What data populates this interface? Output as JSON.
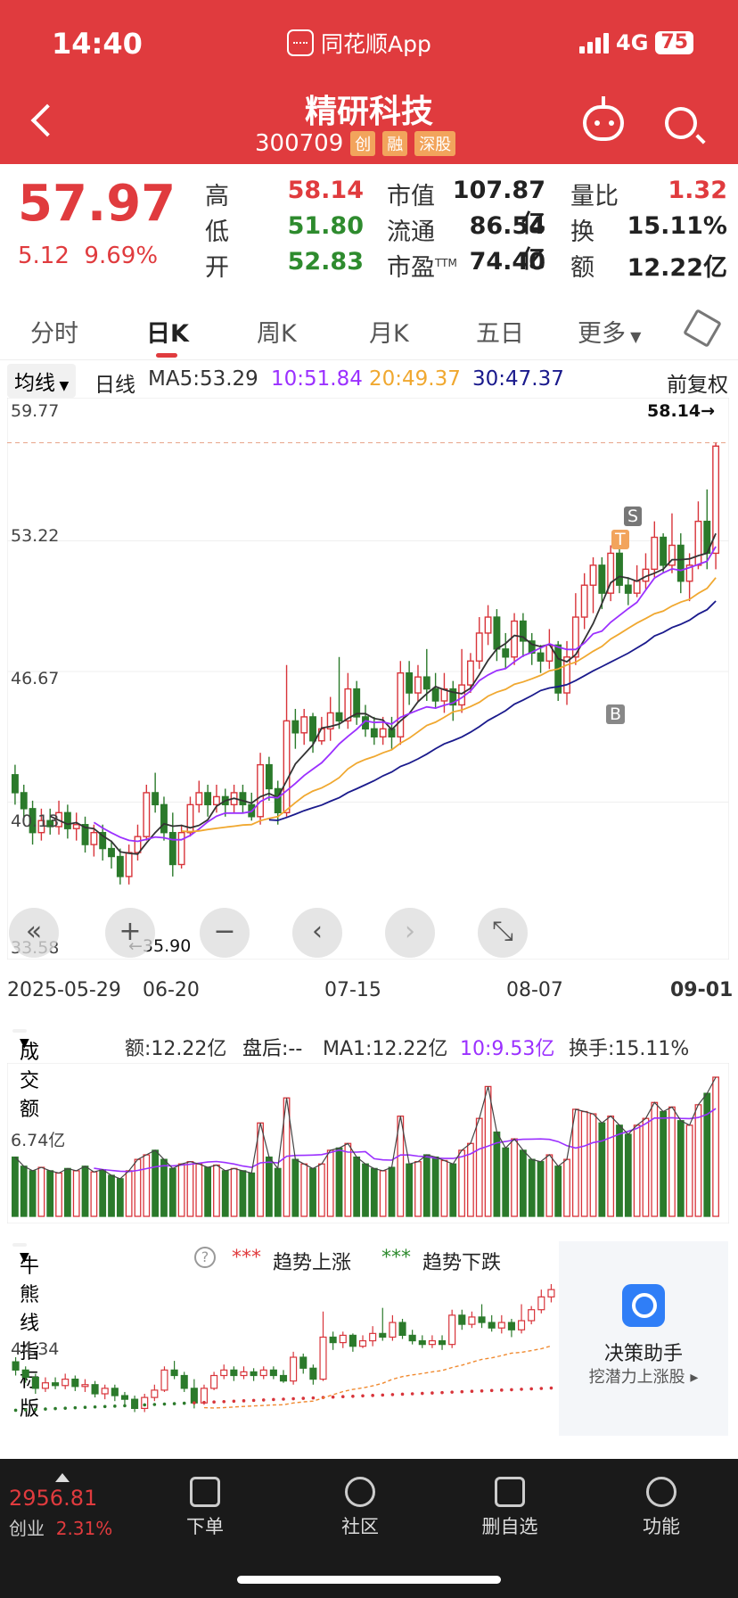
{
  "status": {
    "time": "14:40",
    "app": "同花顺App",
    "network": "4G",
    "battery": "75"
  },
  "header": {
    "name": "精研科技",
    "code": "300709",
    "tags": [
      "创",
      "融",
      "深股"
    ]
  },
  "quote": {
    "price": "57.97",
    "change": "5.12",
    "pct": "9.69%",
    "rows": [
      {
        "l1": "高",
        "v1": "58.14",
        "c1": "red",
        "l2": "市值",
        "v2": "107.87亿",
        "l3": "量比",
        "v3": "1.32",
        "c3": "red"
      },
      {
        "l1": "低",
        "v1": "51.80",
        "c1": "green",
        "l2": "流通",
        "v2": "86.54亿",
        "l3": "换",
        "v3": "15.11%",
        "c3": "dark"
      },
      {
        "l1": "开",
        "v1": "52.83",
        "c1": "green",
        "l2": "市盈",
        "sup": "TTM",
        "v2": "74.40",
        "l3": "额",
        "v3": "12.22亿",
        "c3": "dark"
      }
    ]
  },
  "tabs": [
    "分时",
    "日K",
    "周K",
    "月K",
    "五日",
    "更多"
  ],
  "ma": {
    "type": "均线",
    "period": "日线",
    "ma5": "MA5:53.29",
    "ma10": "10:51.84",
    "ma20": "20:49.37",
    "ma30": "30:47.37",
    "adjust": "前复权",
    "colors": {
      "ma5": "#333333",
      "ma10": "#9b30ff",
      "ma20": "#f0a830",
      "ma30": "#1a1a8c"
    }
  },
  "kchart_labels": {
    "y_ticks": [
      "59.77",
      "53.22",
      "46.67",
      "40.13",
      "33.58"
    ],
    "high_mark": "58.14→",
    "low_mark": "←35.90",
    "signals": [
      "S",
      "T",
      "B"
    ],
    "dates": [
      "2025-05-29",
      "06-20",
      "07-15",
      "08-07",
      "09-01"
    ]
  },
  "volume": {
    "title": "成交额",
    "amount": "额:12.22亿",
    "after": "盘后:--",
    "ma1": "MA1:12.22亿",
    "ma10": "10:9.53亿",
    "turnover": "换手:15.11%",
    "y_tick": "6.74亿"
  },
  "bull": {
    "title": "牛熊线指标版",
    "help": "?",
    "up": "趋势上涨",
    "down": "趋势下跌",
    "stars_up": "***",
    "stars_down": "***",
    "y_tick": "44.34"
  },
  "decision": {
    "title": "决策助手",
    "sub": "挖潜力上涨股 ▸"
  },
  "bottom": {
    "index_value": "2956.81",
    "index_name": "创业",
    "index_pct": "2.31%",
    "items": [
      "下单",
      "社区",
      "删自选",
      "功能"
    ]
  },
  "chart_data": {
    "type": "candlestick",
    "ylim": [
      33.58,
      59.77
    ],
    "candles": [
      [
        41.5,
        40.6,
        42.0,
        40.0
      ],
      [
        40.6,
        39.8,
        41.0,
        39.2
      ],
      [
        39.8,
        38.6,
        40.2,
        38.0
      ],
      [
        38.6,
        39.2,
        39.8,
        38.2
      ],
      [
        39.2,
        38.9,
        39.8,
        38.5
      ],
      [
        38.9,
        39.6,
        40.2,
        38.5
      ],
      [
        39.6,
        38.8,
        40.0,
        38.3
      ],
      [
        38.8,
        39.0,
        39.6,
        38.2
      ],
      [
        39.0,
        38.0,
        39.4,
        37.6
      ],
      [
        38.0,
        38.6,
        39.0,
        37.4
      ],
      [
        38.6,
        37.8,
        39.0,
        37.2
      ],
      [
        37.8,
        37.4,
        38.2,
        36.8
      ],
      [
        37.4,
        36.4,
        37.8,
        36.0
      ],
      [
        36.4,
        37.6,
        38.0,
        36.0
      ],
      [
        37.6,
        38.4,
        39.0,
        37.2
      ],
      [
        38.4,
        40.6,
        41.0,
        38.2
      ],
      [
        40.6,
        40.0,
        41.6,
        39.6
      ],
      [
        40.0,
        38.6,
        40.4,
        38.2
      ],
      [
        38.6,
        37.0,
        39.6,
        36.4
      ],
      [
        37.0,
        38.6,
        39.0,
        36.8
      ],
      [
        38.6,
        40.0,
        40.4,
        38.4
      ],
      [
        40.0,
        40.6,
        41.2,
        39.6
      ],
      [
        40.6,
        40.0,
        41.0,
        39.4
      ],
      [
        40.0,
        40.4,
        41.0,
        39.6
      ],
      [
        40.4,
        40.0,
        40.8,
        39.4
      ],
      [
        40.0,
        40.6,
        41.0,
        39.6
      ],
      [
        40.6,
        40.0,
        41.0,
        39.6
      ],
      [
        40.0,
        39.4,
        40.6,
        39.2
      ],
      [
        39.4,
        42.0,
        42.6,
        39.0
      ],
      [
        42.0,
        40.8,
        42.4,
        40.2
      ],
      [
        40.8,
        39.6,
        41.2,
        39.0
      ],
      [
        39.6,
        44.2,
        47.0,
        39.4
      ],
      [
        44.2,
        43.6,
        44.8,
        42.8
      ],
      [
        43.6,
        44.4,
        44.8,
        43.0
      ],
      [
        44.4,
        43.2,
        44.6,
        42.6
      ],
      [
        43.2,
        43.8,
        44.4,
        43.0
      ],
      [
        43.8,
        44.6,
        45.4,
        43.2
      ],
      [
        44.6,
        44.2,
        47.4,
        43.8
      ],
      [
        44.2,
        45.8,
        46.6,
        43.8
      ],
      [
        45.8,
        44.4,
        46.2,
        44.0
      ],
      [
        44.4,
        43.8,
        45.0,
        43.4
      ],
      [
        43.8,
        43.4,
        44.4,
        43.0
      ],
      [
        43.4,
        43.8,
        44.4,
        43.0
      ],
      [
        43.8,
        43.4,
        44.4,
        42.8
      ],
      [
        43.4,
        46.6,
        47.2,
        43.0
      ],
      [
        46.6,
        45.6,
        47.2,
        45.0
      ],
      [
        45.6,
        46.4,
        47.0,
        45.2
      ],
      [
        46.4,
        45.8,
        47.8,
        45.2
      ],
      [
        45.8,
        45.2,
        46.6,
        44.8
      ],
      [
        45.2,
        45.8,
        46.6,
        44.6
      ],
      [
        45.8,
        45.0,
        46.2,
        44.2
      ],
      [
        45.0,
        46.0,
        47.8,
        44.6
      ],
      [
        46.0,
        47.2,
        47.6,
        45.6
      ],
      [
        47.2,
        48.6,
        49.4,
        46.8
      ],
      [
        48.6,
        49.4,
        50.0,
        48.0
      ],
      [
        49.4,
        47.8,
        49.8,
        47.2
      ],
      [
        47.8,
        47.4,
        48.6,
        46.8
      ],
      [
        47.4,
        49.2,
        49.6,
        47.0
      ],
      [
        49.2,
        48.2,
        49.6,
        47.4
      ],
      [
        48.2,
        47.6,
        48.6,
        47.0
      ],
      [
        47.6,
        47.2,
        48.0,
        46.6
      ],
      [
        47.2,
        48.0,
        48.8,
        46.8
      ],
      [
        48.0,
        45.6,
        48.2,
        45.2
      ],
      [
        45.6,
        47.4,
        48.2,
        45.0
      ],
      [
        47.4,
        49.4,
        50.6,
        47.0
      ],
      [
        49.4,
        51.0,
        51.6,
        48.8
      ],
      [
        51.0,
        52.0,
        52.4,
        49.6
      ],
      [
        52.0,
        50.6,
        52.4,
        49.8
      ],
      [
        50.6,
        52.6,
        53.0,
        50.2
      ],
      [
        52.6,
        51.0,
        53.0,
        50.6
      ],
      [
        51.0,
        50.6,
        51.4,
        50.0
      ],
      [
        50.6,
        51.2,
        52.0,
        50.4
      ],
      [
        51.2,
        51.8,
        52.6,
        50.8
      ],
      [
        51.8,
        53.4,
        54.2,
        51.4
      ],
      [
        53.4,
        52.0,
        53.6,
        51.6
      ],
      [
        52.0,
        53.0,
        54.6,
        51.6
      ],
      [
        53.0,
        51.2,
        53.6,
        50.6
      ],
      [
        51.2,
        52.0,
        52.6,
        50.2
      ],
      [
        52.0,
        54.2,
        55.2,
        51.8
      ],
      [
        54.2,
        52.6,
        55.8,
        51.8
      ],
      [
        52.6,
        57.97,
        58.14,
        51.8
      ]
    ],
    "volume": [
      5.2,
      4.4,
      4.0,
      4.3,
      4.0,
      3.8,
      4.2,
      4.0,
      4.4,
      3.9,
      4.1,
      3.6,
      3.3,
      4.0,
      5.0,
      5.4,
      5.8,
      5.0,
      4.2,
      4.6,
      4.8,
      4.6,
      4.3,
      4.5,
      4.0,
      4.2,
      4.0,
      3.8,
      8.2,
      5.2,
      4.2,
      10.4,
      5.0,
      4.6,
      4.2,
      4.6,
      5.8,
      6.0,
      6.4,
      5.2,
      4.6,
      4.2,
      4.0,
      4.3,
      8.8,
      4.6,
      4.8,
      5.4,
      5.2,
      4.9,
      4.6,
      5.8,
      6.4,
      8.6,
      11.4,
      7.4,
      6.0,
      6.8,
      5.8,
      5.0,
      4.8,
      5.4,
      4.4,
      5.0,
      9.4,
      9.2,
      9.0,
      8.2,
      8.8,
      8.0,
      7.2,
      8.0,
      8.6,
      10.0,
      9.2,
      9.6,
      8.4,
      8.0,
      9.8,
      10.8,
      12.22
    ]
  }
}
